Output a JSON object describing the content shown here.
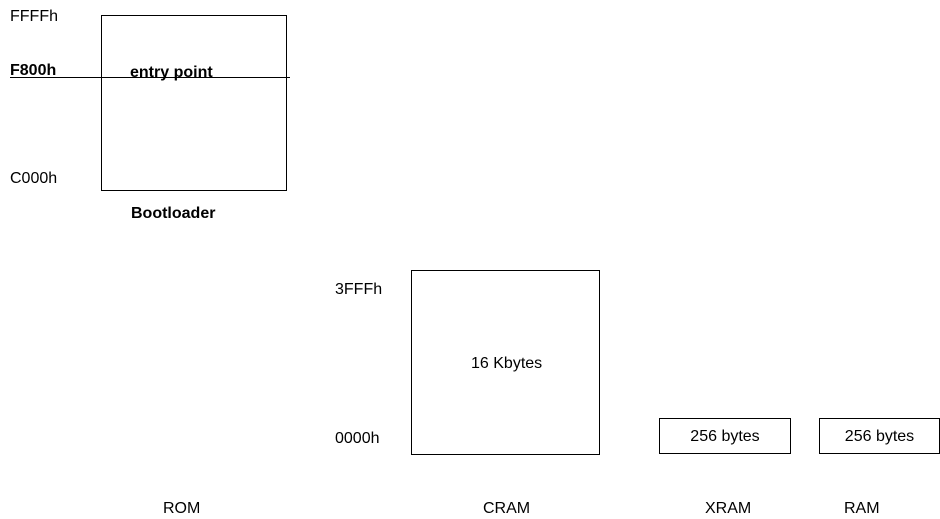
{
  "bootloader": {
    "addr_top": "FFFFh",
    "addr_entry": "F800h",
    "addr_bottom": "C000h",
    "entry_label": "entry point",
    "caption": "Bootloader"
  },
  "cram": {
    "addr_top": "3FFFh",
    "addr_bottom": "0000h",
    "size_label": "16 Kbytes"
  },
  "xram": {
    "size_label": "256 bytes"
  },
  "ram": {
    "size_label": "256 bytes"
  },
  "bottom_labels": {
    "rom": "ROM",
    "cram": "CRAM",
    "xram": "XRAM",
    "ram": "RAM"
  }
}
